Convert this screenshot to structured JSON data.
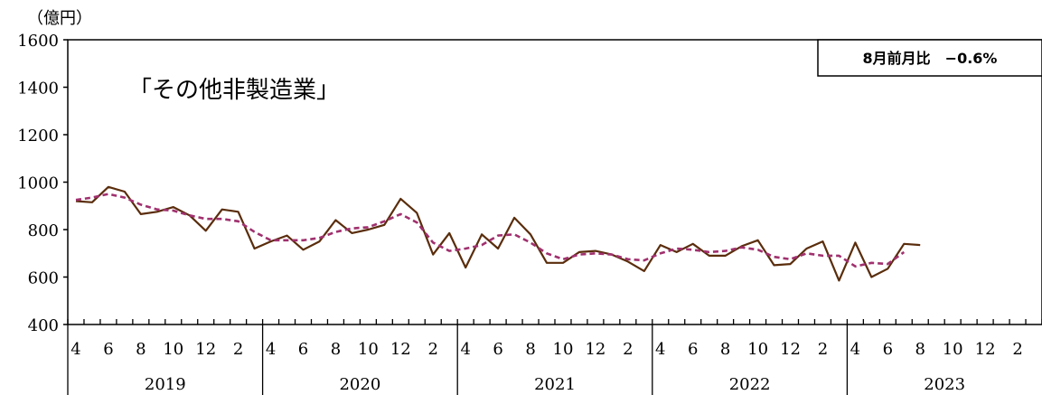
{
  "chart_data": {
    "type": "line",
    "title": "「その他非製造業」",
    "unit_label": "（億円）",
    "annotation": "8月前月比　−0.6%",
    "ylim": [
      400,
      1600
    ],
    "yticks": [
      400,
      600,
      800,
      1000,
      1200,
      1400,
      1600
    ],
    "x_month_tick_labels": [
      "4",
      "6",
      "8",
      "10",
      "12",
      "2"
    ],
    "years": [
      "2019",
      "2020",
      "2021",
      "2022",
      "2023"
    ],
    "months_per_year": 12,
    "series": [
      {
        "role": "actual",
        "style": "solid",
        "color": "#5a2d0c",
        "values": [
          920,
          915,
          980,
          960,
          865,
          875,
          895,
          860,
          795,
          885,
          875,
          720,
          750,
          775,
          715,
          750,
          840,
          785,
          800,
          820,
          930,
          870,
          695,
          785,
          640,
          780,
          720,
          850,
          780,
          660,
          660,
          705,
          710,
          695,
          665,
          625,
          735,
          705,
          740,
          690,
          690,
          730,
          755,
          650,
          655,
          720,
          750,
          585,
          745,
          600,
          635,
          740,
          735
        ]
      },
      {
        "role": "trend",
        "style": "dashed",
        "color": "#a0306e",
        "values": [
          925,
          935,
          950,
          935,
          905,
          885,
          880,
          860,
          845,
          845,
          835,
          790,
          755,
          755,
          755,
          765,
          790,
          805,
          810,
          835,
          865,
          830,
          745,
          710,
          720,
          735,
          775,
          780,
          745,
          700,
          675,
          695,
          700,
          695,
          675,
          670,
          700,
          720,
          715,
          705,
          710,
          725,
          715,
          685,
          675,
          700,
          690,
          690,
          645,
          660,
          655,
          705
        ]
      }
    ]
  }
}
